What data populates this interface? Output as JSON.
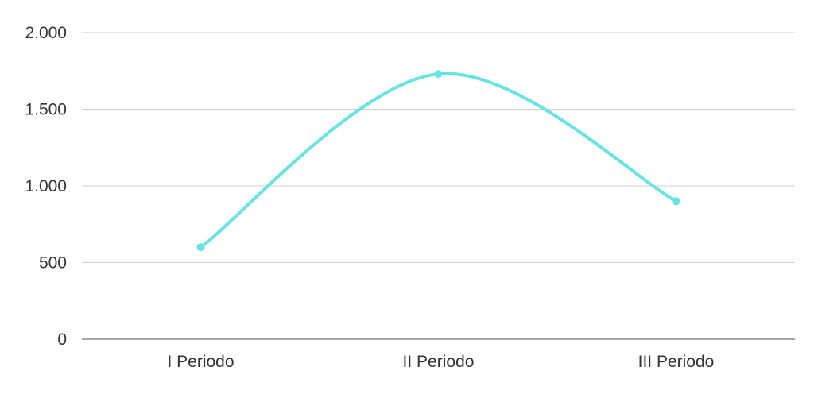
{
  "chart_data": {
    "type": "line",
    "categories": [
      "I Periodo",
      "II Periodo",
      "III Periodo"
    ],
    "series": [
      {
        "values": [
          600,
          1730,
          900
        ]
      }
    ],
    "ylim": [
      0,
      2000
    ],
    "yticks": [
      0,
      500,
      1000,
      1500,
      2000
    ],
    "ytick_labels": [
      "0",
      "500",
      "1.000",
      "1.500",
      "2.000"
    ],
    "grid": true,
    "legend": "none",
    "smooth": true,
    "colors": {
      "line": "#66e3e3",
      "grid": "#cfcfcf",
      "axis": "#888888",
      "text": "#333333"
    }
  }
}
